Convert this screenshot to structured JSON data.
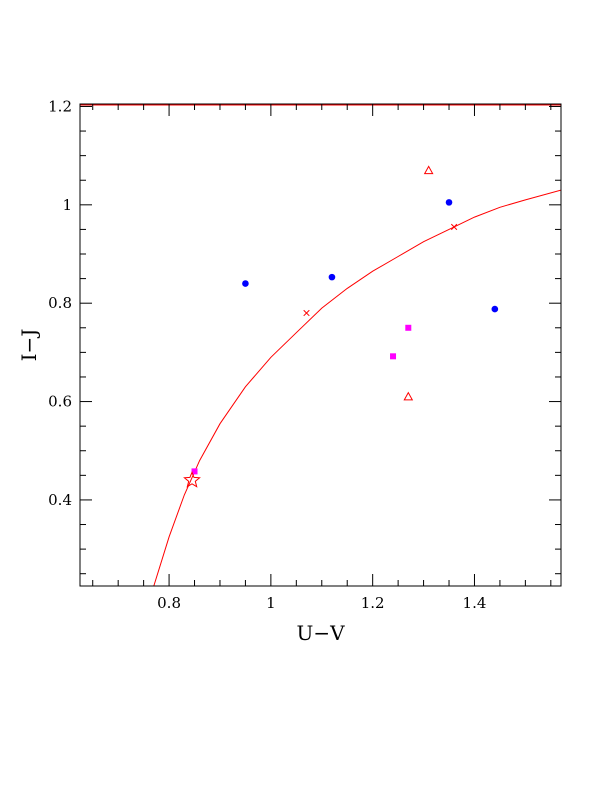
{
  "chart_data": {
    "type": "scatter",
    "xlabel": "U−V",
    "ylabel": "I−J",
    "xlim": [
      0.625,
      1.57
    ],
    "ylim": [
      0.225,
      1.205
    ],
    "x_ticks": [
      0.8,
      1.0,
      1.2,
      1.4
    ],
    "x_tick_labels": [
      "0.8",
      "1",
      "1.2",
      "1.4"
    ],
    "y_ticks": [
      0.4,
      0.6,
      0.8,
      1.0,
      1.2
    ],
    "y_tick_labels": [
      "0.4",
      "0.6",
      "0.8",
      "1",
      "1.2"
    ],
    "x_minor_step": 0.05,
    "y_minor_step": 0.05,
    "grid": false,
    "colors": {
      "red": "#ff0000",
      "blue": "#0000ff",
      "magenta": "#ff00ff",
      "axis": "#000000"
    },
    "curve": {
      "color": "#ff0000",
      "points": [
        [
          0.77,
          0.225
        ],
        [
          0.8,
          0.325
        ],
        [
          0.83,
          0.41
        ],
        [
          0.86,
          0.48
        ],
        [
          0.9,
          0.555
        ],
        [
          0.95,
          0.63
        ],
        [
          1.0,
          0.69
        ],
        [
          1.05,
          0.74
        ],
        [
          1.1,
          0.79
        ],
        [
          1.15,
          0.83
        ],
        [
          1.2,
          0.865
        ],
        [
          1.25,
          0.895
        ],
        [
          1.3,
          0.925
        ],
        [
          1.35,
          0.95
        ],
        [
          1.4,
          0.975
        ],
        [
          1.45,
          0.995
        ],
        [
          1.5,
          1.01
        ],
        [
          1.57,
          1.03
        ]
      ]
    },
    "series": [
      {
        "marker": "circle",
        "color": "#0000ff",
        "x": [
          0.95,
          1.12,
          1.35,
          1.44
        ],
        "y": [
          0.84,
          0.853,
          1.005,
          0.788
        ]
      },
      {
        "marker": "square",
        "color": "#ff00ff",
        "x": [
          0.85,
          1.24,
          1.27
        ],
        "y": [
          0.458,
          0.692,
          0.75
        ]
      },
      {
        "marker": "triangle",
        "color": "#ff0000",
        "x": [
          1.31,
          1.27
        ],
        "y": [
          1.07,
          0.61
        ]
      },
      {
        "marker": "cross",
        "color": "#ff0000",
        "x": [
          1.07,
          1.36
        ],
        "y": [
          0.78,
          0.955
        ]
      },
      {
        "marker": "star",
        "color": "#ff0000",
        "x": [
          0.845
        ],
        "y": [
          0.44
        ]
      }
    ],
    "top_line": {
      "color": "#ff0000",
      "y": 1.203
    }
  }
}
